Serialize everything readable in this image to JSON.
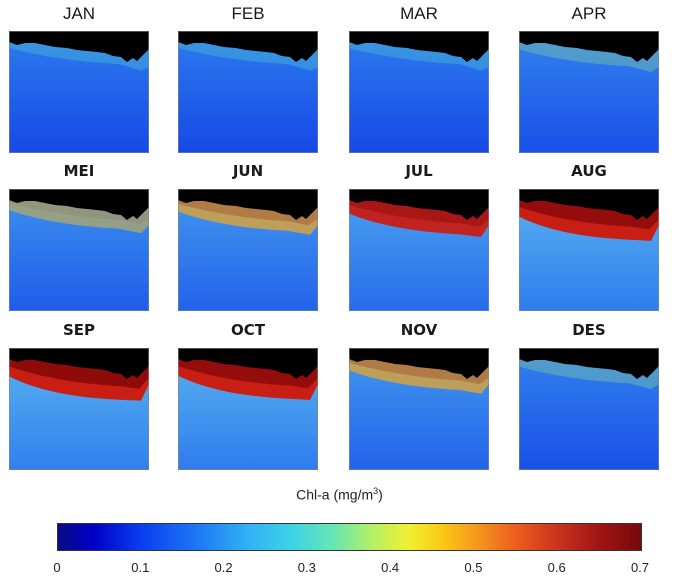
{
  "months": [
    {
      "label": "JAN",
      "bold": false,
      "intensity": 0.05
    },
    {
      "label": "FEB",
      "bold": false,
      "intensity": 0.05
    },
    {
      "label": "MAR",
      "bold": false,
      "intensity": 0.05
    },
    {
      "label": "APR",
      "bold": false,
      "intensity": 0.15
    },
    {
      "label": "MEI",
      "bold": true,
      "intensity": 0.35
    },
    {
      "label": "JUN",
      "bold": true,
      "intensity": 0.45
    },
    {
      "label": "JUL",
      "bold": true,
      "intensity": 0.6
    },
    {
      "label": "AUG",
      "bold": true,
      "intensity": 0.85
    },
    {
      "label": "SEP",
      "bold": true,
      "intensity": 0.9
    },
    {
      "label": "OCT",
      "bold": true,
      "intensity": 0.85
    },
    {
      "label": "NOV",
      "bold": true,
      "intensity": 0.45
    },
    {
      "label": "DES",
      "bold": true,
      "intensity": 0.15
    }
  ],
  "colorbar": {
    "title": "Chl-a (mg/m",
    "title_sup": "3",
    "title_close": ")",
    "min": 0,
    "max": 0.7,
    "ticks": [
      "0",
      "0.1",
      "0.2",
      "0.3",
      "0.4",
      "0.5",
      "0.6",
      "0.7"
    ]
  },
  "colors": {
    "land": "#000000",
    "ocean_deep": "#1446e6",
    "ocean_mid": "#2a78ee",
    "coastal_high": "#c81e14",
    "coastal_mid": "#f0a020"
  }
}
